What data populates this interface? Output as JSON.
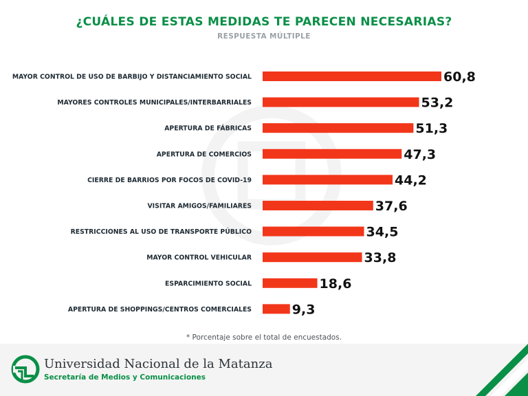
{
  "header": {
    "title": "¿CUÁLES DE ESTAS MEDIDAS TE PARECEN NECESARIAS?",
    "subtitle": "RESPUESTA MÚLTIPLE"
  },
  "chart_data": {
    "type": "bar",
    "orientation": "horizontal",
    "title": "¿CUÁLES DE ESTAS MEDIDAS TE PARECEN NECESARIAS?",
    "subtitle": "RESPUESTA MÚLTIPLE",
    "categories": [
      "MAYOR CONTROL DE USO DE BARBIJO Y DISTANCIAMIENTO SOCIAL",
      "MAYORES CONTROLES MUNICIPALES/INTERBARRIALES",
      "APERTURA DE FÁBRICAS",
      "APERTURA DE COMERCIOS",
      "CIERRE DE BARRIOS POR FOCOS DE COVID-19",
      "VISITAR AMIGOS/FAMILIARES",
      "RESTRICCIONES AL USO DE TRANSPORTE PÚBLICO",
      "MAYOR CONTROL VEHICULAR",
      "ESPARCIMIENTO SOCIAL",
      "APERTURA DE SHOPPINGS/CENTROS COMERCIALES"
    ],
    "values": [
      60.8,
      53.2,
      51.3,
      47.3,
      44.2,
      37.6,
      34.5,
      33.8,
      18.6,
      9.3
    ],
    "value_labels": [
      "60,8",
      "53,2",
      "51,3",
      "47,3",
      "44,2",
      "37,6",
      "34,5",
      "33,8",
      "18,6",
      "9,3"
    ],
    "bar_color": "#f2361a",
    "grid": false,
    "legend": "none"
  },
  "footnote": "* Porcentaje sobre el total de encuestados.",
  "footer": {
    "org_name": "Universidad Nacional de la Matanza",
    "dept_name": "Secretaría de Medios y Comunicaciones",
    "logo_icon": "unlam-logo-icon",
    "brand_green": "#0a8f47"
  }
}
